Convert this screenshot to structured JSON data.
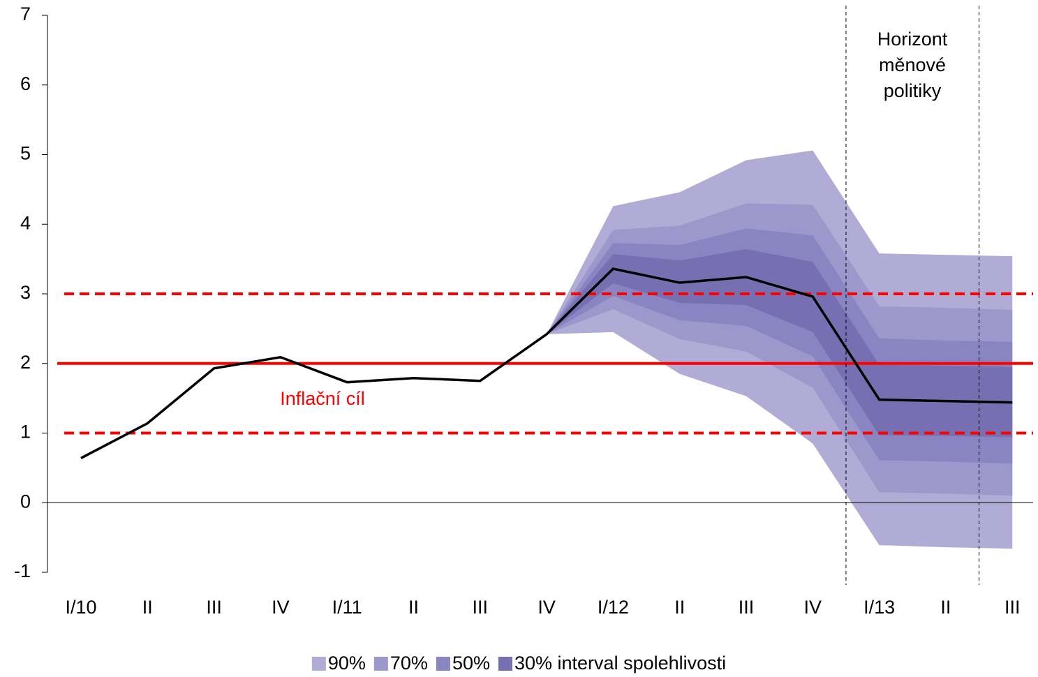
{
  "chart_data": {
    "type": "fan",
    "categories": [
      "I/10",
      "II",
      "III",
      "IV",
      "I/11",
      "II",
      "III",
      "IV",
      "I/12",
      "II",
      "III",
      "IV",
      "I/13",
      "II",
      "III"
    ],
    "values": [
      0.64,
      1.14,
      1.93,
      2.09,
      1.73,
      1.79,
      1.75,
      2.42,
      3.36,
      3.16,
      3.24,
      2.96,
      1.48,
      1.46,
      1.44
    ],
    "line_color": "#000000",
    "series": [
      {
        "name": "90%",
        "color": "#b0acd6",
        "lower": [
          null,
          null,
          null,
          null,
          null,
          null,
          null,
          2.42,
          2.45,
          1.85,
          1.53,
          0.85,
          -0.61,
          -0.64,
          -0.66
        ],
        "upper": [
          null,
          null,
          null,
          null,
          null,
          null,
          null,
          2.42,
          4.26,
          4.46,
          4.92,
          5.06,
          3.58,
          3.56,
          3.54
        ]
      },
      {
        "name": "70%",
        "color": "#9d98cc",
        "lower": [
          null,
          null,
          null,
          null,
          null,
          null,
          null,
          2.42,
          2.78,
          2.35,
          2.17,
          1.65,
          0.15,
          0.13,
          0.1
        ],
        "upper": [
          null,
          null,
          null,
          null,
          null,
          null,
          null,
          2.42,
          3.92,
          3.98,
          4.3,
          4.28,
          2.82,
          2.8,
          2.77
        ]
      },
      {
        "name": "50%",
        "color": "#8984c2",
        "lower": [
          null,
          null,
          null,
          null,
          null,
          null,
          null,
          2.42,
          2.97,
          2.62,
          2.54,
          2.1,
          0.61,
          0.59,
          0.56
        ],
        "upper": [
          null,
          null,
          null,
          null,
          null,
          null,
          null,
          2.42,
          3.73,
          3.7,
          3.94,
          3.84,
          2.36,
          2.33,
          2.31
        ]
      },
      {
        "name": "30% interval spolehlivosti",
        "color": "#7670b2",
        "lower": [
          null,
          null,
          null,
          null,
          null,
          null,
          null,
          2.42,
          3.15,
          2.87,
          2.84,
          2.45,
          0.97,
          0.96,
          0.94
        ],
        "upper": [
          null,
          null,
          null,
          null,
          null,
          null,
          null,
          2.42,
          3.57,
          3.48,
          3.64,
          3.46,
          1.98,
          1.97,
          1.95
        ]
      }
    ],
    "target": {
      "label": "Inflační cíl",
      "value": 2,
      "lower": 1,
      "upper": 3,
      "color": "#ff0000"
    },
    "annotation": [
      "Horizont",
      "měnové",
      "politiky"
    ],
    "ylim": [
      -1,
      7
    ],
    "yticks": [
      -1,
      0,
      1,
      2,
      3,
      4,
      5,
      6,
      7
    ],
    "grid": false
  }
}
